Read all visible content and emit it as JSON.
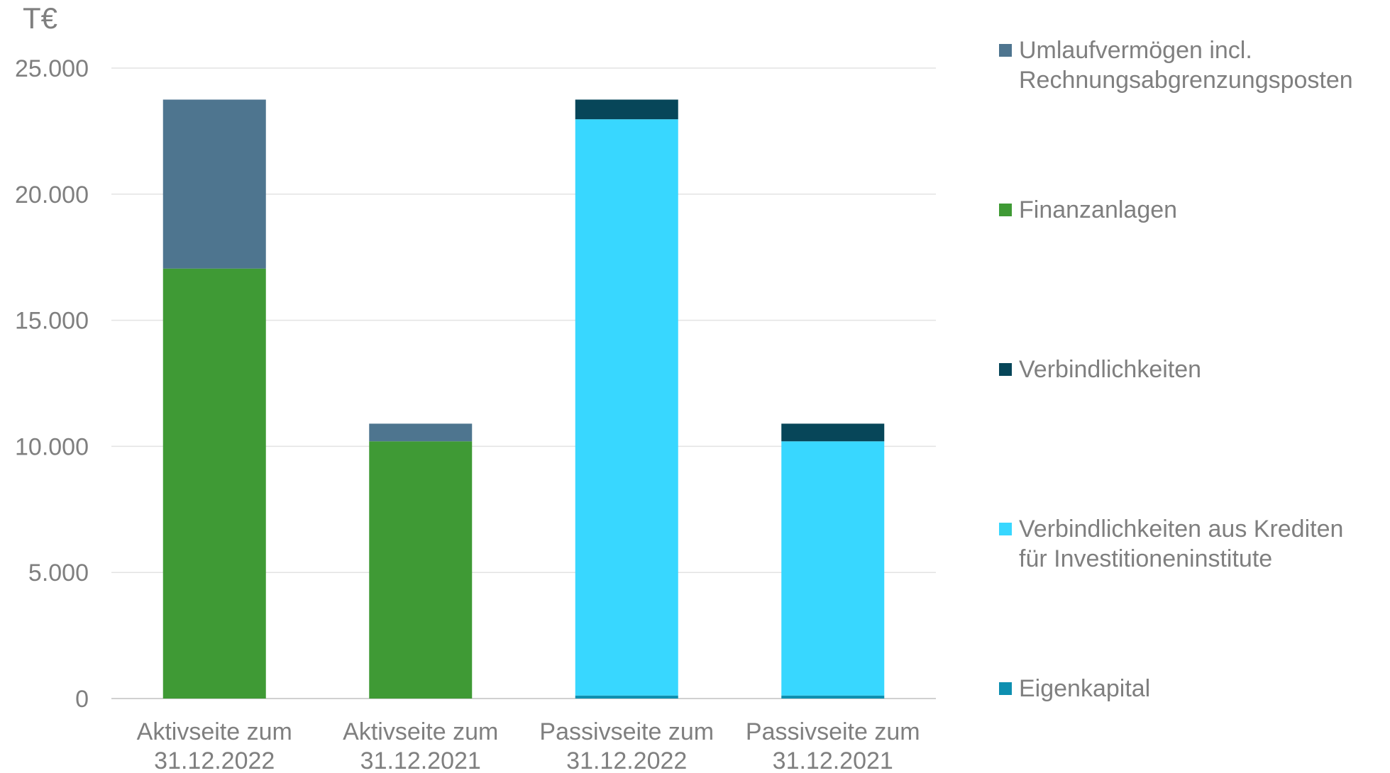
{
  "chart_data": {
    "type": "bar",
    "stacked": true,
    "unit_label": "T€",
    "ylim": [
      0,
      25000
    ],
    "y_ticks": [
      "0",
      "5.000",
      "10.000",
      "15.000",
      "20.000",
      "25.000"
    ],
    "y_tick_values": [
      0,
      5000,
      10000,
      15000,
      20000,
      25000
    ],
    "grid": true,
    "legend_position": "right",
    "categories": [
      [
        "Aktivseite zum",
        "31.12.2022"
      ],
      [
        "Aktivseite zum",
        "31.12.2021"
      ],
      [
        "Passivseite zum",
        "31.12.2022"
      ],
      [
        "Passivseite zum",
        "31.12.2021"
      ]
    ],
    "series": [
      {
        "name": "Eigenkapital",
        "color": "#0e8fb0",
        "values": [
          0,
          0,
          120,
          120
        ]
      },
      {
        "name": "Verbindlichkeiten aus Krediten für Investitioneninstitute",
        "color": "#38d7ff",
        "values": [
          0,
          0,
          22850,
          10080
        ]
      },
      {
        "name": "Verbindlichkeiten",
        "color": "#074659",
        "values": [
          0,
          0,
          780,
          700
        ]
      },
      {
        "name": "Finanzanlagen",
        "color": "#3f9a35",
        "values": [
          17050,
          10200,
          0,
          0
        ]
      },
      {
        "name": "Umlaufvermögen incl. Rechnungsabgrenzungsposten",
        "color": "#4e758f",
        "values": [
          6700,
          700,
          0,
          0
        ]
      }
    ]
  },
  "legend": [
    {
      "lines": [
        "Umlaufvermögen incl.",
        "Rechnungsabgrenzungsposten"
      ],
      "color": "#4e758f"
    },
    {
      "lines": [
        "Finanzanlagen"
      ],
      "color": "#3f9a35"
    },
    {
      "lines": [
        "Verbindlichkeiten"
      ],
      "color": "#074659"
    },
    {
      "lines": [
        "Verbindlichkeiten aus Krediten",
        "für Investitioneninstitute"
      ],
      "color": "#38d7ff"
    },
    {
      "lines": [
        "Eigenkapital"
      ],
      "color": "#0e8fb0"
    }
  ]
}
